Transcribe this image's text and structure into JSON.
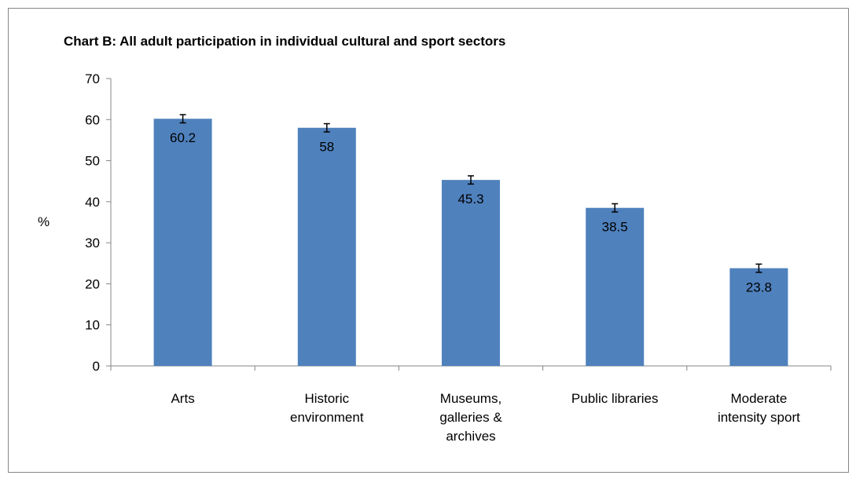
{
  "chart_data": {
    "type": "bar",
    "title": "Chart B: All adult participation in individual cultural and sport sectors",
    "ylabel": "%",
    "xlabel": "",
    "ylim": [
      0,
      70
    ],
    "yticks": [
      0,
      10,
      20,
      30,
      40,
      50,
      60,
      70
    ],
    "categories": [
      [
        "Arts"
      ],
      [
        "Historic",
        "environment"
      ],
      [
        "Museums,",
        "galleries &",
        "archives"
      ],
      [
        "Public libraries"
      ],
      [
        "Moderate",
        "intensity sport"
      ]
    ],
    "values": [
      60.2,
      58,
      45.3,
      38.5,
      23.8
    ],
    "data_labels": [
      "60.2",
      "58",
      "45.3",
      "38.5",
      "23.8"
    ],
    "error_bar": 1.0,
    "bar_color": "#4f81bd",
    "grid": false,
    "legend": "none"
  }
}
